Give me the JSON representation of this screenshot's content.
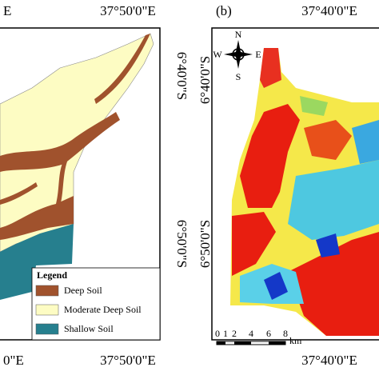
{
  "panel_a": {
    "top_label_partial": "E",
    "top_lon": "37°50'0\"E",
    "right_lat_1": "6°40'0\"S",
    "right_lat_2": "6°50'0\"S",
    "bottom_partial": "0\"E",
    "bottom_lon": "37°50'0\"E",
    "legend": {
      "title": "Legend",
      "items": [
        "Deep Soil",
        "Moderate Deep Soil",
        "Shallow Soil"
      ]
    }
  },
  "panel_b": {
    "label": "(b)",
    "top_lon": "37°40'0\"E",
    "left_lat_1": "6°40'0\"S",
    "left_lat_2": "6°50'0\"S",
    "bottom_lon": "37°40'0\"E",
    "compass": {
      "n": "N",
      "s": "S",
      "w": "W",
      "e": "E"
    },
    "scale": {
      "ticks": [
        "0",
        "1",
        "2",
        "4",
        "6",
        "8"
      ],
      "unit": "km"
    }
  }
}
